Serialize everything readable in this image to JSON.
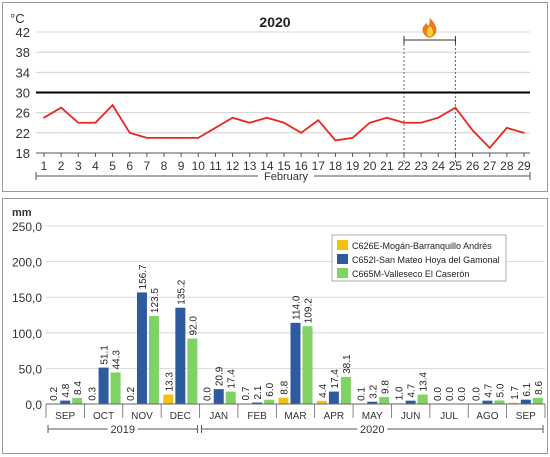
{
  "chart_data": [
    {
      "type": "line",
      "title": "2020",
      "ylabel": "°C",
      "xlabel": "February",
      "ylim": [
        18,
        42
      ],
      "yticks": [
        18,
        22,
        26,
        30,
        34,
        38,
        42
      ],
      "x": [
        1,
        2,
        3,
        4,
        5,
        6,
        7,
        8,
        9,
        10,
        11,
        12,
        13,
        14,
        15,
        16,
        17,
        18,
        19,
        20,
        21,
        22,
        23,
        24,
        25,
        26,
        27,
        28,
        29
      ],
      "x_labels": [
        "1",
        "2",
        "3",
        "4",
        "5",
        "6",
        "7",
        "8",
        "9",
        "10",
        "11",
        "12",
        "13",
        "14",
        "15",
        "16",
        "17",
        "18",
        "19",
        "20",
        "21",
        "22",
        "23",
        "24",
        "25",
        "26",
        "27",
        "28",
        "29"
      ],
      "y_labels": [
        "18",
        "22",
        "26",
        "30",
        "34",
        "38",
        "42"
      ],
      "series": [
        {
          "values": [
            25.0,
            27.0,
            24.0,
            24.0,
            27.5,
            22.0,
            21.0,
            21.0,
            21.0,
            21.0,
            23.0,
            25.0,
            24.0,
            25.0,
            24.0,
            22.0,
            24.5,
            20.5,
            21.0,
            24.0,
            25.0,
            24.0,
            24.0,
            25.0,
            27.0,
            22.5,
            19.0,
            23.0,
            22.0
          ],
          "color": "#e8281e"
        }
      ],
      "reference_line": {
        "y": 30,
        "color": "#000000"
      },
      "annotation": {
        "x_range": [
          22,
          25
        ],
        "icon": "fire-icon"
      },
      "grid": "horizontal"
    },
    {
      "type": "bar",
      "ylabel": "mm",
      "ylim": [
        0,
        250
      ],
      "yticks": [
        0,
        50,
        100,
        150,
        200,
        250
      ],
      "y_labels": [
        "0,0",
        "50,0",
        "100,0",
        "150,0",
        "200,0",
        "250,0"
      ],
      "categories": [
        "SEP",
        "OCT",
        "NOV",
        "DEC",
        "JAN",
        "FEB",
        "MAR",
        "APR",
        "MAY",
        "JUN",
        "JUL",
        "AGO",
        "SEP"
      ],
      "year_groups": [
        {
          "label": "2019",
          "start": 0,
          "end": 3
        },
        {
          "label": "2020",
          "start": 4,
          "end": 12
        }
      ],
      "series": [
        {
          "name": "C626E-Mogán-Barranquillo Andrés",
          "color": "#f2c10d",
          "values": [
            0.2,
            0.3,
            0.2,
            13.3,
            0.0,
            0.7,
            8.8,
            4.4,
            0.1,
            1.0,
            0.0,
            0.0,
            1.7
          ],
          "labels": [
            "0.2",
            "0.3",
            "0.2",
            "13.3",
            "0.0",
            "0.7",
            "8.8",
            "4.4",
            "0.1",
            "1.0",
            "0.0",
            "0.0",
            "1.7"
          ]
        },
        {
          "name": "C652I-San Mateo Hoya del Gamonal",
          "color": "#2e5a9e",
          "values": [
            4.8,
            51.1,
            156.7,
            135.2,
            20.9,
            2.1,
            114.0,
            17.4,
            3.2,
            4.7,
            0.0,
            4.7,
            6.1
          ],
          "labels": [
            "4.8",
            "51.1",
            "156.7",
            "135.2",
            "20.9",
            "2.1",
            "114.0",
            "17.4",
            "3.2",
            "4.7",
            "0.0",
            "4.7",
            "6.1"
          ]
        },
        {
          "name": "C665M-Valleseco El Caserón",
          "color": "#7fd263",
          "values": [
            8.4,
            44.3,
            123.5,
            92.0,
            17.4,
            6.0,
            109.2,
            38.1,
            9.8,
            13.4,
            0.0,
            5.0,
            8.6
          ],
          "labels": [
            "8.4",
            "44.3",
            "123.5",
            "92.0",
            "17.4",
            "6.0",
            "109.2",
            "38.1",
            "9.8",
            "13.4",
            "0.0",
            "5.0",
            "8.6"
          ]
        }
      ],
      "legend": "top-right",
      "grid": "horizontal"
    }
  ]
}
